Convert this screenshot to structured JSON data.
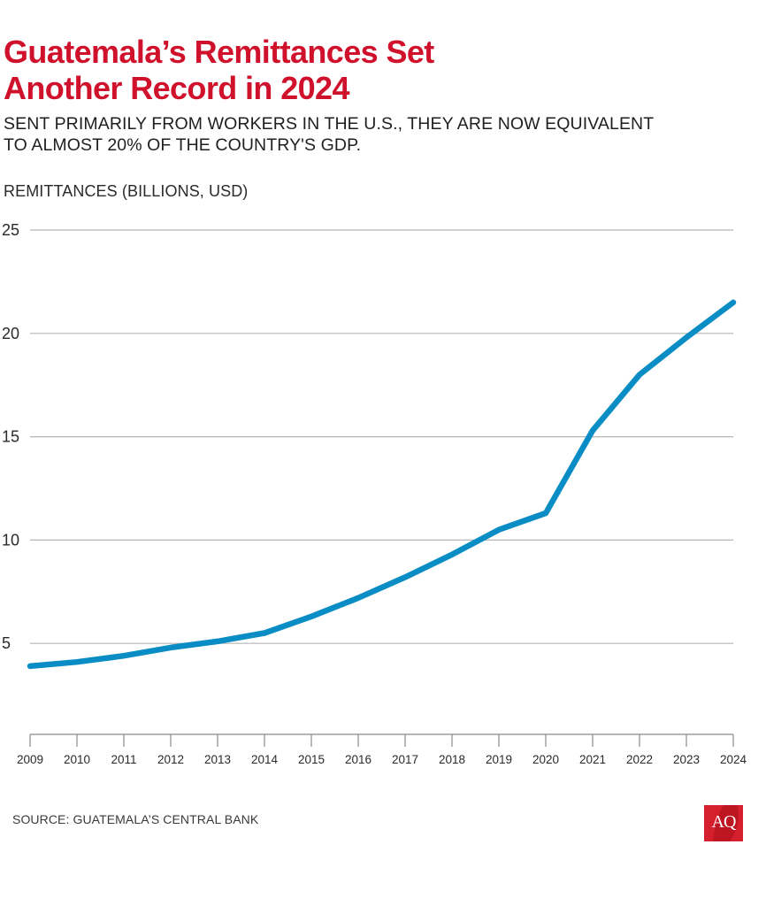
{
  "header": {
    "title_lines": [
      "Guatemala’s Remittances Set",
      "Another Record in 2024"
    ],
    "subtitle_lines": [
      "SENT PRIMARILY FROM WORKERS IN THE U.S., THEY ARE NOW EQUIVALENT",
      "TO ALMOST 20% OF THE COUNTRY'S GDP."
    ]
  },
  "footer": {
    "source": "SOURCE: GUATEMALA’S CENTRAL BANK",
    "logo_text": "AQ"
  },
  "colors": {
    "title": "#d0112b",
    "line": "#0a8dc4",
    "grid": "#b5b5b5",
    "axis": "#8a8a8a",
    "logo": "#d61f2c"
  },
  "chart_data": {
    "type": "line",
    "title": "Guatemala’s Remittances Set Another Record in 2024",
    "subtitle": "SENT PRIMARILY FROM WORKERS IN THE U.S., THEY ARE NOW EQUIVALENT TO ALMOST 20% OF THE COUNTRY'S GDP.",
    "xlabel": "",
    "ylabel": "REMITTANCES (BILLIONS, USD)",
    "x": [
      "2009",
      "2010",
      "2011",
      "2012",
      "2013",
      "2014",
      "2015",
      "2016",
      "2017",
      "2018",
      "2019",
      "2020",
      "2021",
      "2022",
      "2023",
      "2024"
    ],
    "series": [
      {
        "name": "Remittances",
        "values": [
          3.9,
          4.1,
          4.4,
          4.8,
          5.1,
          5.5,
          6.3,
          7.2,
          8.2,
          9.3,
          10.5,
          11.3,
          15.3,
          18.0,
          19.8,
          21.5
        ]
      }
    ],
    "yticks": [
      5,
      10,
      15,
      20,
      25
    ],
    "ylim": [
      0,
      25
    ],
    "grid": true,
    "legend": "none",
    "source": "SOURCE: GUATEMALA’S CENTRAL BANK"
  }
}
